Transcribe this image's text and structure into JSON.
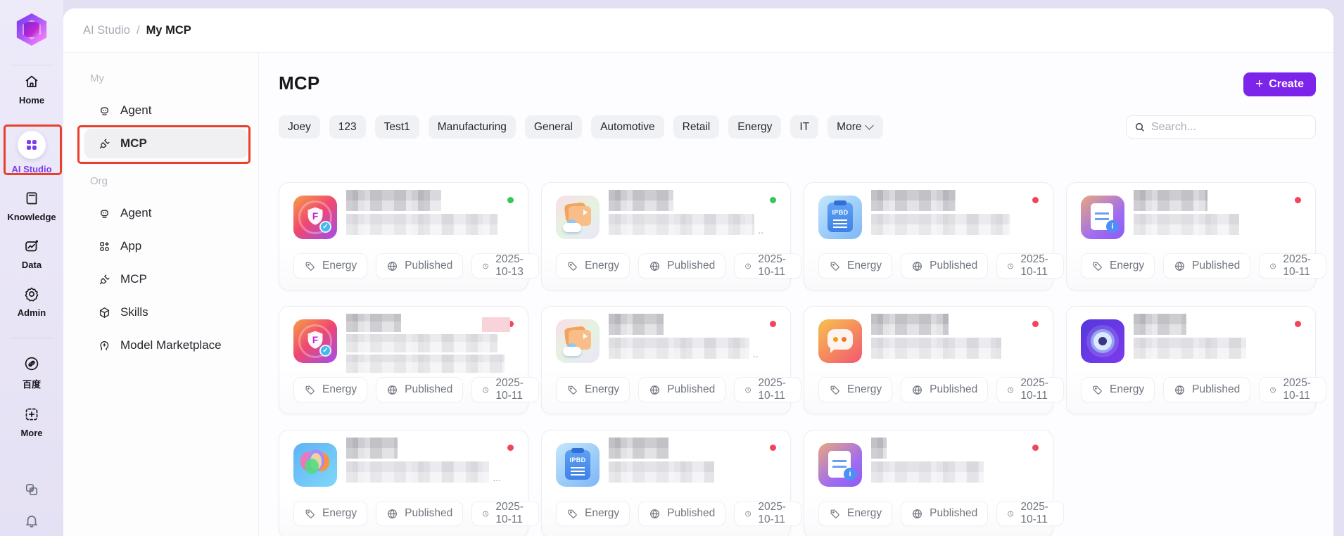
{
  "colors": {
    "accent_purple": "#7c24ea",
    "annotation_red": "#e8402a",
    "status_green": "#35c759",
    "status_red": "#f2455a",
    "rail_bg": "#e9e6f7"
  },
  "rail": {
    "items": [
      {
        "label": "Home",
        "icon": "home",
        "active": false
      },
      {
        "label": "AI Studio",
        "icon": "grid",
        "active": true
      },
      {
        "label": "Knowledge",
        "icon": "book",
        "active": false
      },
      {
        "label": "Data",
        "icon": "data",
        "active": false
      },
      {
        "label": "Admin",
        "icon": "gear",
        "active": false,
        "divider_after": true
      },
      {
        "label": "百度",
        "icon": "link",
        "active": false
      },
      {
        "label": "More",
        "icon": "more",
        "active": false
      }
    ],
    "bottom_icons": [
      "palette",
      "bell"
    ]
  },
  "breadcrumb": {
    "parent": "AI Studio",
    "separator": "/",
    "current": "My MCP"
  },
  "sidebar": {
    "sections": [
      {
        "label": "My",
        "items": [
          {
            "label": "Agent",
            "icon": "robot",
            "selected": false
          },
          {
            "label": "MCP",
            "icon": "plug",
            "selected": true
          }
        ]
      },
      {
        "label": "Org",
        "items": [
          {
            "label": "Agent",
            "icon": "robot",
            "selected": false
          },
          {
            "label": "App",
            "icon": "app",
            "selected": false
          },
          {
            "label": "MCP",
            "icon": "plug",
            "selected": false
          },
          {
            "label": "Skills",
            "icon": "cube",
            "selected": false
          },
          {
            "label": "Model Marketplace",
            "icon": "model",
            "selected": false
          }
        ]
      }
    ]
  },
  "main": {
    "title": "MCP",
    "create": {
      "plus": "+",
      "label": "Create"
    },
    "filters": [
      "Joey",
      "123",
      "Test1",
      "Manufacturing",
      "General",
      "Automotive",
      "Retail",
      "Energy",
      "IT"
    ],
    "more_filter": "More",
    "search": {
      "placeholder": "Search..."
    },
    "cards": [
      {
        "icon": "fshield",
        "dot": "green",
        "tags": [
          "Energy",
          "Published",
          "2025-10-13"
        ],
        "blur": {
          "l1": 135,
          "l2": 215,
          "lines": 2,
          "suffix": "",
          "pink": false
        }
      },
      {
        "icon": "cloud",
        "dot": "green",
        "tags": [
          "Energy",
          "Published",
          "2025-10-11"
        ],
        "blur": {
          "l1": 92,
          "l2": 220,
          "lines": 2,
          "suffix": "..",
          "pink": false
        }
      },
      {
        "icon": "ipbd",
        "dot": "red",
        "tags": [
          "Energy",
          "Published",
          "2025-10-11"
        ],
        "blur": {
          "l1": 120,
          "l2": 197,
          "lines": 2,
          "suffix": "",
          "pink": false
        }
      },
      {
        "icon": "doc",
        "dot": "red",
        "tags": [
          "Energy",
          "Published",
          "2025-10-11"
        ],
        "blur": {
          "l1": 105,
          "l2": 150,
          "lines": 2,
          "suffix": "",
          "pink": false
        }
      },
      {
        "icon": "fshield",
        "dot": "red",
        "tags": [
          "Energy",
          "Published",
          "2025-10-11"
        ],
        "blur": {
          "l1": 78,
          "l2": 215,
          "l3": 225,
          "lines": 3,
          "suffix": "",
          "pink": true
        }
      },
      {
        "icon": "cloud",
        "dot": "red",
        "tags": [
          "Energy",
          "Published",
          "2025-10-11"
        ],
        "blur": {
          "l1": 78,
          "l2": 200,
          "lines": 2,
          "suffix": "..",
          "pink": false
        }
      },
      {
        "icon": "chat",
        "dot": "red",
        "tags": [
          "Energy",
          "Published",
          "2025-10-11"
        ],
        "blur": {
          "l1": 110,
          "l2": 185,
          "lines": 2,
          "suffix": "",
          "pink": false
        }
      },
      {
        "icon": "cam",
        "dot": "red",
        "tags": [
          "Energy",
          "Published",
          "2025-10-11"
        ],
        "blur": {
          "l1": 75,
          "l2": 160,
          "lines": 2,
          "suffix": "",
          "pink": false
        }
      },
      {
        "icon": "brain",
        "dot": "red",
        "tags": [
          "Energy",
          "Published",
          "2025-10-11"
        ],
        "blur": {
          "l1": 73,
          "l2": 213,
          "lines": 2,
          "suffix": "...",
          "pink": false
        }
      },
      {
        "icon": "ipbd",
        "dot": "red",
        "tags": [
          "Energy",
          "Published",
          "2025-10-11"
        ],
        "blur": {
          "l1": 85,
          "l2": 150,
          "lines": 2,
          "suffix": "",
          "pink": false
        }
      },
      {
        "icon": "doc",
        "dot": "red",
        "tags": [
          "Energy",
          "Published",
          "2025-10-11"
        ],
        "blur": {
          "l1": 22,
          "l2": 160,
          "lines": 2,
          "suffix": "",
          "pink": false
        }
      }
    ]
  }
}
